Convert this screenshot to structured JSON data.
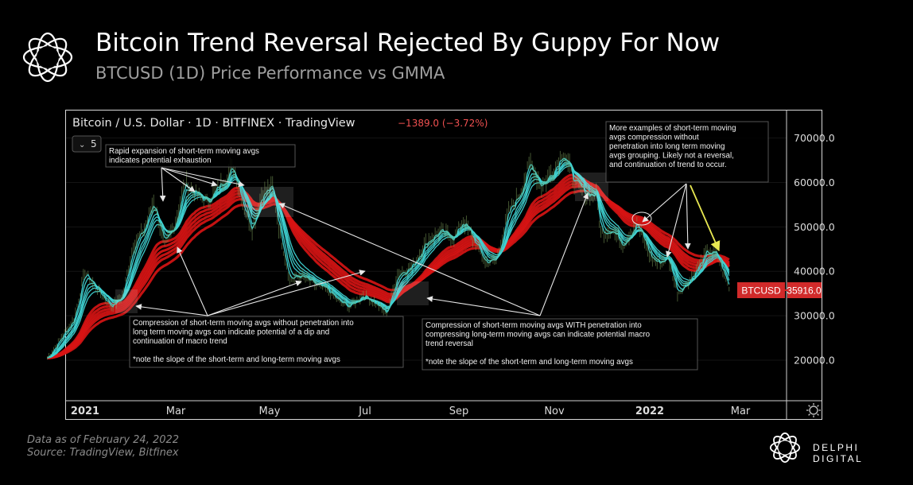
{
  "header": {
    "title": "Bitcoin Trend Reversal Rejected By Guppy For Now",
    "subtitle": "BTCUSD (1D) Price Performance vs GMMA"
  },
  "chart_data": {
    "type": "line",
    "symbol_title": "Bitcoin / U.S. Dollar · 1D · BITFINEX · TradingView",
    "change": "−1389.0 (−3.72%)",
    "interval_badge": "5",
    "x_tick_labels": [
      "2021",
      "Mar",
      "May",
      "Jul",
      "Sep",
      "Nov",
      "2022",
      "Mar"
    ],
    "y_tick_labels": [
      "70000.0",
      "60000.0",
      "50000.0",
      "40000.0",
      "30000.0",
      "20000.0"
    ],
    "ylim": [
      12000,
      75000
    ],
    "last_price_label": "BTCUSD",
    "last_price_value": "35916.0",
    "colors": {
      "short_term": "#3fd4d4",
      "long_term": "#d81414",
      "price_badge": "#d12a2a"
    },
    "series": [
      {
        "x": [
          "2020-12-15",
          "2021-01-01",
          "2021-01-08",
          "2021-01-15",
          "2021-01-25",
          "2021-02-01",
          "2021-02-08",
          "2021-02-15",
          "2021-02-21",
          "2021-02-28",
          "2021-03-07",
          "2021-03-13",
          "2021-03-20",
          "2021-03-27",
          "2021-04-03",
          "2021-04-13",
          "2021-04-20",
          "2021-04-25",
          "2021-05-01",
          "2021-05-08",
          "2021-05-12",
          "2021-05-19",
          "2021-05-26",
          "2021-06-05",
          "2021-06-12",
          "2021-06-20",
          "2021-06-26",
          "2021-07-05",
          "2021-07-12",
          "2021-07-20",
          "2021-07-27",
          "2021-08-05",
          "2021-08-14",
          "2021-08-23",
          "2021-09-01",
          "2021-09-07",
          "2021-09-14",
          "2021-09-21",
          "2021-09-28",
          "2021-10-06",
          "2021-10-13",
          "2021-10-20",
          "2021-10-27",
          "2021-11-03",
          "2021-11-10",
          "2021-11-17",
          "2021-11-24",
          "2021-12-01",
          "2021-12-04",
          "2021-12-11",
          "2021-12-18",
          "2021-12-27",
          "2022-01-05",
          "2022-01-10",
          "2022-01-16",
          "2022-01-22",
          "2022-01-29",
          "2022-02-05",
          "2022-02-10",
          "2022-02-16",
          "2022-02-24"
        ],
        "values": [
          20500,
          29300,
          40000,
          36200,
          32000,
          34500,
          46000,
          49500,
          56000,
          45500,
          51200,
          60000,
          57500,
          55500,
          58800,
          63500,
          54000,
          49500,
          57500,
          58800,
          50000,
          38000,
          39000,
          36800,
          35800,
          33000,
          32000,
          34800,
          33000,
          30500,
          39500,
          41000,
          46500,
          49000,
          47500,
          51500,
          46800,
          42000,
          42500,
          53500,
          57500,
          64500,
          59000,
          62500,
          67000,
          60000,
          57500,
          57200,
          48500,
          49500,
          46000,
          51000,
          43000,
          41800,
          43200,
          35000,
          37800,
          41500,
          44500,
          43800,
          36000
        ]
      }
    ],
    "annotations": [
      {
        "text": [
          "Rapid expansion of short-term moving avgs",
          "indicates potential exhaustion"
        ]
      },
      {
        "text": [
          "Compression of short-term moving avgs without penetration into",
          "long term moving avgs can indicate potential of a dip and",
          "continuation of macro trend",
          "",
          "*note the slope of the short-term and long-term moving avgs"
        ]
      },
      {
        "text": [
          "Compression of short-term moving avgs WITH penetration into",
          "compressing long-term moving avgs can indicate potential macro",
          "trend reversal",
          "",
          "*note the slope of the short-term and long-term moving avgs"
        ]
      },
      {
        "text": [
          "More examples of short-term moving",
          "avgs compression without",
          "penetration into long term moving",
          "avgs grouping. Likely not a reversal,",
          "and continuation of trend to occur."
        ]
      }
    ]
  },
  "footer": {
    "note_date": "Data as of February 24, 2022",
    "note_source": "Source: TradingView, Bitfinex",
    "brand": "DELPHI DIGITAL"
  }
}
